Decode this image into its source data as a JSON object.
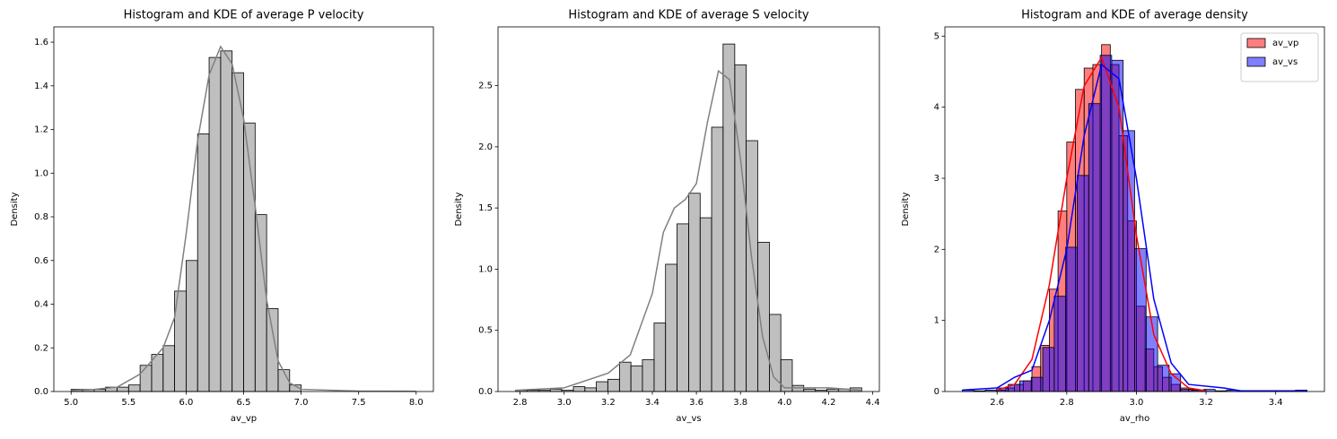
{
  "chart_data": [
    {
      "type": "histogram",
      "title": "Histogram and KDE of average P velocity",
      "xlabel": "av_vp",
      "ylabel": "Density",
      "color": "gray",
      "alpha": 0.5,
      "edgecolor": "black",
      "bins": [
        5.0,
        5.1,
        5.2,
        5.3,
        5.4,
        5.5,
        5.6,
        5.7,
        5.8,
        5.9,
        6.0,
        6.1,
        6.2,
        6.3,
        6.4,
        6.5,
        6.6,
        6.7,
        6.8,
        6.9,
        7.0,
        7.1,
        7.2,
        7.3,
        7.4,
        7.5,
        7.6,
        7.7,
        7.8,
        7.9,
        8.0
      ],
      "values": [
        0.01,
        0.01,
        0.01,
        0.02,
        0.02,
        0.03,
        0.12,
        0.17,
        0.21,
        0.46,
        0.6,
        1.18,
        1.53,
        1.56,
        1.46,
        1.23,
        0.81,
        0.38,
        0.1,
        0.03,
        0,
        0,
        0,
        0,
        0,
        0,
        0,
        0,
        0,
        0
      ],
      "kde": {
        "color": "gray",
        "x": [
          5.0,
          5.2,
          5.4,
          5.6,
          5.8,
          5.9,
          6.0,
          6.1,
          6.2,
          6.3,
          6.4,
          6.5,
          6.6,
          6.7,
          6.8,
          6.9,
          7.0,
          7.5,
          8.0
        ],
        "values": [
          0.005,
          0.01,
          0.02,
          0.08,
          0.2,
          0.34,
          0.72,
          1.15,
          1.45,
          1.58,
          1.5,
          1.25,
          0.85,
          0.42,
          0.14,
          0.04,
          0.01,
          0.002,
          0.001
        ]
      },
      "xlim": [
        4.85,
        8.15
      ],
      "ylim": [
        0,
        1.67
      ],
      "xticks": [
        {
          "value": 5,
          "label": "5.0"
        },
        5.5,
        {
          "value": 6,
          "label": "6.0"
        },
        6.5,
        {
          "value": 7,
          "label": "7.0"
        },
        7.5,
        {
          "value": 8,
          "label": "8.0"
        }
      ],
      "yticks": [
        {
          "value": 0,
          "label": "0.0"
        },
        0.2,
        0.4,
        0.6,
        0.8,
        {
          "value": 1,
          "label": "1.0"
        },
        1.2,
        1.4,
        1.6
      ]
    },
    {
      "type": "histogram",
      "title": "Histogram and KDE of average S velocity",
      "xlabel": "av_vs",
      "ylabel": "Density",
      "color": "gray",
      "alpha": 0.5,
      "edgecolor": "black",
      "bins": [
        2.78,
        2.832,
        2.885,
        2.937,
        2.989,
        3.042,
        3.094,
        3.146,
        3.198,
        3.251,
        3.303,
        3.355,
        3.408,
        3.46,
        3.512,
        3.565,
        3.617,
        3.669,
        3.721,
        3.774,
        3.826,
        3.878,
        3.931,
        3.983,
        4.035,
        4.087,
        4.14,
        4.192,
        4.244,
        4.297,
        4.35
      ],
      "values": [
        0.01,
        0.01,
        0.01,
        0.02,
        0.01,
        0.04,
        0.03,
        0.08,
        0.1,
        0.24,
        0.21,
        0.26,
        0.56,
        1.04,
        1.37,
        1.62,
        1.42,
        2.16,
        2.84,
        2.67,
        2.05,
        1.22,
        0.63,
        0.26,
        0.05,
        0.02,
        0.01,
        0.02,
        0.02,
        0.03
      ],
      "kde": {
        "color": "gray",
        "x": [
          2.78,
          3.0,
          3.2,
          3.3,
          3.4,
          3.45,
          3.5,
          3.55,
          3.6,
          3.65,
          3.7,
          3.75,
          3.8,
          3.85,
          3.9,
          3.95,
          4.0,
          4.2,
          4.35
        ],
        "values": [
          0.01,
          0.03,
          0.15,
          0.3,
          0.8,
          1.3,
          1.5,
          1.57,
          1.7,
          2.2,
          2.62,
          2.55,
          1.9,
          1.1,
          0.45,
          0.12,
          0.03,
          0.03,
          0.01
        ]
      },
      "xlim": [
        2.7,
        4.43
      ],
      "ylim": [
        0,
        2.98
      ],
      "xticks": [
        2.8,
        {
          "value": 3,
          "label": "3.0"
        },
        3.2,
        3.4,
        3.6,
        3.8,
        {
          "value": 4,
          "label": "4.0"
        },
        4.2,
        4.4
      ],
      "yticks": [
        {
          "value": 0,
          "label": "0.0"
        },
        0.5,
        {
          "value": 1,
          "label": "1.0"
        },
        1.5,
        {
          "value": 2,
          "label": "2.0"
        },
        2.5
      ]
    },
    {
      "type": "histogram",
      "title": "Histogram and KDE of average density",
      "xlabel": "av_rho",
      "ylabel": "Density",
      "legend": "upper right",
      "alpha": 0.5,
      "edgecolor": "black",
      "series": [
        {
          "name": "av_vp",
          "color": "red",
          "bins": [
            2.6,
            2.625,
            2.65,
            2.675,
            2.7,
            2.725,
            2.75,
            2.775,
            2.8,
            2.825,
            2.85,
            2.875,
            2.9,
            2.925,
            2.95,
            2.975,
            3.0,
            3.025,
            3.05,
            3.075,
            3.1,
            3.125,
            3.15,
            3.175,
            3.2
          ],
          "values": [
            0.02,
            0.05,
            0.1,
            0.15,
            0.35,
            0.65,
            1.44,
            2.54,
            3.51,
            4.25,
            4.55,
            4.6,
            4.88,
            4.6,
            3.6,
            2.4,
            1.2,
            0.6,
            0.35,
            0.2,
            0.1,
            0.05,
            0.03,
            0.02
          ],
          "kde": {
            "x": [
              2.6,
              2.65,
              2.7,
              2.75,
              2.8,
              2.85,
              2.9,
              2.95,
              3.0,
              3.05,
              3.1,
              3.15,
              3.2
            ],
            "values": [
              0.02,
              0.1,
              0.45,
              1.5,
              3.0,
              4.3,
              4.7,
              4.0,
              2.2,
              0.8,
              0.25,
              0.05,
              0.01
            ]
          }
        },
        {
          "name": "av_vs",
          "color": "blue",
          "bins": [
            2.5,
            2.533,
            2.566,
            2.599,
            2.632,
            2.665,
            2.698,
            2.731,
            2.764,
            2.797,
            2.83,
            2.863,
            2.896,
            2.929,
            2.962,
            2.995,
            3.028,
            3.061,
            3.094,
            3.127,
            3.16,
            3.193,
            3.226,
            3.259,
            3.292,
            3.325,
            3.358,
            3.391,
            3.424,
            3.457,
            3.49
          ],
          "values": [
            0.02,
            0.01,
            0.02,
            0.05,
            0.1,
            0.15,
            0.2,
            0.62,
            1.34,
            2.03,
            3.04,
            4.05,
            4.73,
            4.66,
            3.67,
            2.01,
            1.05,
            0.37,
            0.25,
            0.03,
            0.02,
            0.03,
            0.01,
            0.02,
            0.01,
            0.01,
            0.01,
            0.01,
            0.01,
            0.02
          ],
          "kde": {
            "x": [
              2.5,
              2.6,
              2.65,
              2.7,
              2.75,
              2.8,
              2.85,
              2.9,
              2.95,
              3.0,
              3.05,
              3.1,
              3.15,
              3.25,
              3.3,
              3.49
            ],
            "values": [
              0.02,
              0.05,
              0.2,
              0.3,
              1.0,
              2.0,
              3.6,
              4.6,
              4.4,
              3.0,
              1.3,
              0.4,
              0.1,
              0.05,
              0.01,
              0.01
            ]
          }
        }
      ],
      "xlim": [
        2.45,
        3.54
      ],
      "ylim": [
        0,
        5.13
      ],
      "xticks": [
        2.6,
        2.8,
        {
          "value": 3,
          "label": "3.0"
        },
        3.2,
        3.4
      ],
      "yticks": [
        0,
        1,
        2,
        3,
        4,
        5
      ]
    }
  ]
}
